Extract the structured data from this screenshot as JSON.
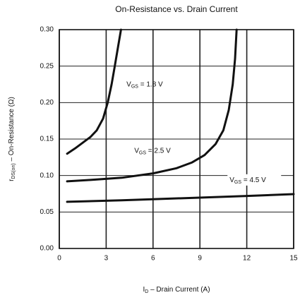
{
  "chart_data": {
    "type": "line",
    "title": "On-Resistance vs. Drain Current",
    "x_label": [
      "I",
      "D",
      "  –  Drain Current (A)"
    ],
    "y_label": [
      "r",
      "DS(on)",
      "  –  On-Resistance (Ω)"
    ],
    "xlim": [
      0,
      15
    ],
    "xticks": [
      0,
      3,
      6,
      9,
      12,
      15
    ],
    "ylim": [
      0,
      0.3
    ],
    "yticks": [
      {
        "value": 0,
        "label": "0.00"
      },
      {
        "value": 0.05,
        "label": "0.05"
      },
      {
        "value": 0.1,
        "label": "0.10"
      },
      {
        "value": 0.15,
        "label": "0.15"
      },
      {
        "value": 0.2,
        "label": "0.20"
      },
      {
        "value": 0.25,
        "label": "0.25"
      },
      {
        "value": 0.3,
        "label": "0.30"
      }
    ],
    "grid": true,
    "series": [
      {
        "label_parts": [
          "V",
          "GS",
          " = 1.8 V"
        ],
        "color": "#111111",
        "x": [
          0.5,
          1.0,
          1.5,
          2.0,
          2.4,
          2.8,
          3.1,
          3.35,
          3.55,
          3.75,
          3.95
        ],
        "values": [
          0.13,
          0.137,
          0.145,
          0.153,
          0.162,
          0.178,
          0.2,
          0.225,
          0.25,
          0.275,
          0.3
        ]
      },
      {
        "label_parts": [
          "V",
          "GS",
          " = 2.5 V"
        ],
        "color": "#111111",
        "x": [
          0.5,
          2,
          4,
          6,
          7.5,
          8.5,
          9.3,
          10,
          10.5,
          10.85,
          11.1,
          11.25,
          11.35
        ],
        "values": [
          0.092,
          0.094,
          0.097,
          0.103,
          0.11,
          0.118,
          0.128,
          0.143,
          0.162,
          0.19,
          0.225,
          0.26,
          0.3
        ]
      },
      {
        "label_parts": [
          "V",
          "GS",
          " = 4.5 V"
        ],
        "color": "#111111",
        "x": [
          0.5,
          4,
          8,
          12,
          15
        ],
        "values": [
          0.064,
          0.066,
          0.069,
          0.072,
          0.0745
        ]
      }
    ]
  }
}
